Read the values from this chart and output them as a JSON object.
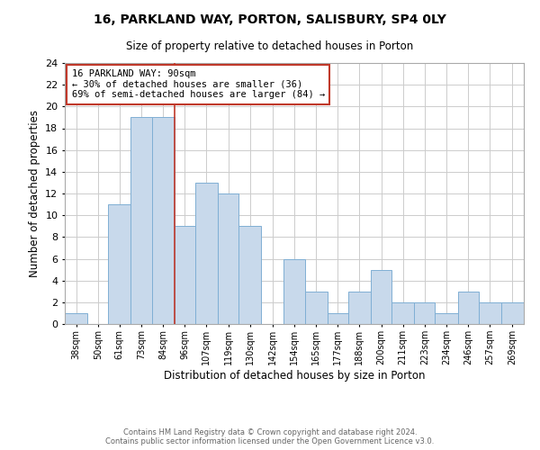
{
  "title1": "16, PARKLAND WAY, PORTON, SALISBURY, SP4 0LY",
  "title2": "Size of property relative to detached houses in Porton",
  "xlabel": "Distribution of detached houses by size in Porton",
  "ylabel": "Number of detached properties",
  "bin_labels": [
    "38sqm",
    "50sqm",
    "61sqm",
    "73sqm",
    "84sqm",
    "96sqm",
    "107sqm",
    "119sqm",
    "130sqm",
    "142sqm",
    "154sqm",
    "165sqm",
    "177sqm",
    "188sqm",
    "200sqm",
    "211sqm",
    "223sqm",
    "234sqm",
    "246sqm",
    "257sqm",
    "269sqm"
  ],
  "bin_edges": [
    38,
    50,
    61,
    73,
    84,
    96,
    107,
    119,
    130,
    142,
    154,
    165,
    177,
    188,
    200,
    211,
    223,
    234,
    246,
    257,
    269,
    281
  ],
  "counts": [
    1,
    0,
    11,
    19,
    19,
    9,
    13,
    12,
    9,
    0,
    6,
    3,
    1,
    3,
    5,
    2,
    2,
    1,
    3,
    2,
    2
  ],
  "property_bin_edge": 96,
  "bar_color": "#c8d9eb",
  "bar_edge_color": "#7fafd4",
  "vline_color": "#c0392b",
  "annotation_title": "16 PARKLAND WAY: 90sqm",
  "annotation_line1": "← 30% of detached houses are smaller (36)",
  "annotation_line2": "69% of semi-detached houses are larger (84) →",
  "annotation_box_color": "#c0392b",
  "ylim": [
    0,
    24
  ],
  "yticks": [
    0,
    2,
    4,
    6,
    8,
    10,
    12,
    14,
    16,
    18,
    20,
    22,
    24
  ],
  "footer1": "Contains HM Land Registry data © Crown copyright and database right 2024.",
  "footer2": "Contains public sector information licensed under the Open Government Licence v3.0.",
  "bg_color": "#ffffff",
  "grid_color": "#cccccc"
}
